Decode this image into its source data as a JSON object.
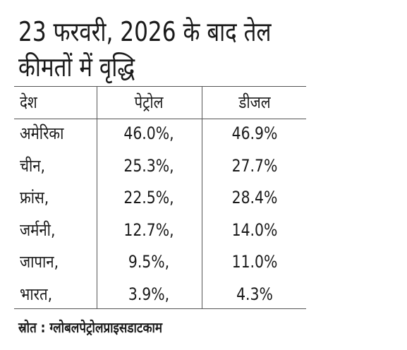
{
  "title": {
    "lines": [
      "23 फरवरी, 2026 के बाद तेल",
      "कीमतों में वृद्धि"
    ]
  },
  "table": {
    "header": [
      "देश",
      "पेट्रोल",
      "डीजल"
    ],
    "rows": [
      [
        "अमेरिका",
        "46.0%,",
        "46.9%"
      ],
      [
        "चीन,",
        "25.3%,",
        "27.7%"
      ],
      [
        "फ्रांस,",
        "22.5%,",
        "28.4%"
      ],
      [
        "जर्मनी,",
        "12.7%,",
        "14.0%"
      ],
      [
        "जापान,",
        "9.5%,",
        "11.0%"
      ],
      [
        "भारत,",
        "3.9%,",
        "4.3%"
      ]
    ]
  },
  "source": "स्रोत : ग्लोबलपेट्रोलप्राइसडाटकाम"
}
